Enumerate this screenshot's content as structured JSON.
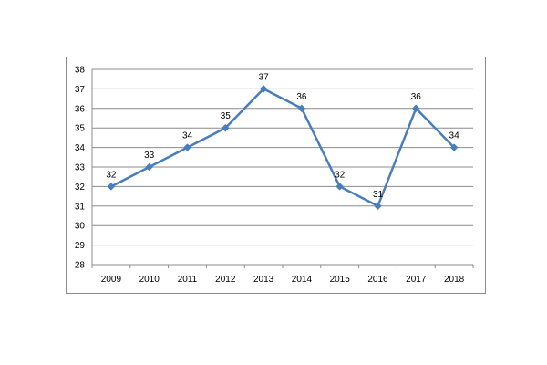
{
  "chart_data": {
    "type": "line",
    "title": "",
    "xlabel": "",
    "ylabel": "",
    "categories": [
      "2009",
      "2010",
      "2011",
      "2012",
      "2013",
      "2014",
      "2015",
      "2016",
      "2017",
      "2018"
    ],
    "series": [
      {
        "values": [
          32,
          33,
          34,
          35,
          37,
          36,
          32,
          31,
          36,
          34
        ],
        "color": "#4a7ebb"
      }
    ],
    "ylim": [
      28,
      38
    ],
    "y_ticks": [
      "28",
      "29",
      "30",
      "31",
      "32",
      "33",
      "34",
      "35",
      "36",
      "37",
      "38"
    ],
    "data_labels": [
      "32",
      "33",
      "34",
      "35",
      "37",
      "36",
      "32",
      "31",
      "36",
      "34"
    ],
    "grid": true,
    "gridline_color": "#8c8c8c",
    "marker": "diamond",
    "legend": "none"
  }
}
